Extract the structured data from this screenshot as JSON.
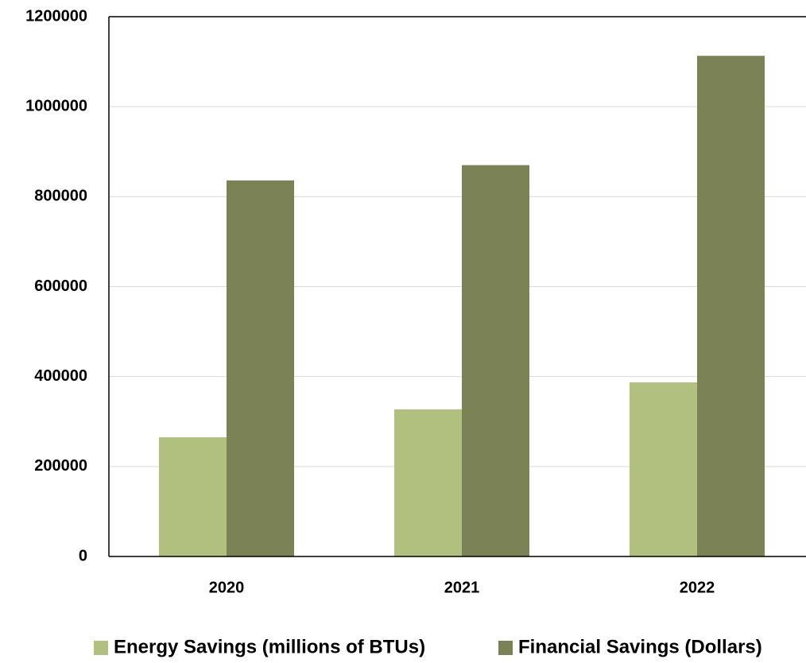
{
  "chart_data": {
    "type": "bar",
    "categories": [
      "2020",
      "2021",
      "2022"
    ],
    "series": [
      {
        "name": "Energy Savings (millions of BTUs)",
        "color": "#b1bf7f",
        "values": [
          265000,
          327000,
          387000
        ]
      },
      {
        "name": "Financial Savings (Dollars)",
        "color": "#7b8356",
        "values": [
          836000,
          870000,
          1113000
        ]
      }
    ],
    "ylim": [
      0,
      1200000
    ],
    "yticks": [
      0,
      200000,
      400000,
      600000,
      800000,
      1000000,
      1200000
    ],
    "grid": true
  }
}
